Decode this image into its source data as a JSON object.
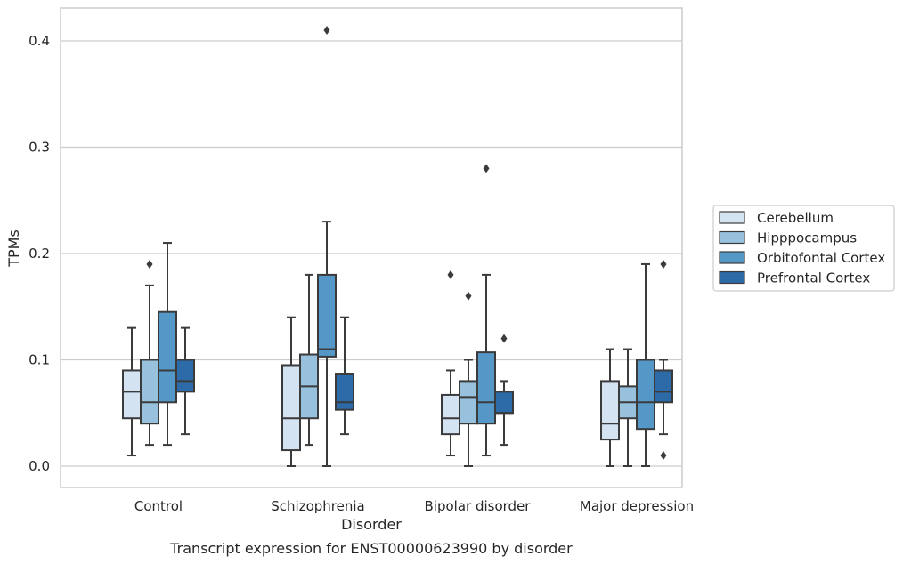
{
  "chart_data": {
    "type": "box",
    "xlabel": "Disorder",
    "ylabel": "TPMs",
    "caption": "Transcript expression for ENST00000623990 by disorder",
    "ylim": [
      -0.02,
      0.43
    ],
    "yticks": [
      0.0,
      0.1,
      0.2,
      0.3,
      0.4
    ],
    "ytick_labels": [
      "0.0",
      "0.1",
      "0.2",
      "0.3",
      "0.4"
    ],
    "grid": "horizontal",
    "legend_position": "right",
    "categories": [
      "Control",
      "Schizophrenia",
      "Bipolar disorder",
      "Major depression"
    ],
    "series": [
      {
        "name": "Cerebellum",
        "color": "#d4e3f2",
        "boxes": [
          {
            "whislo": 0.01,
            "q1": 0.045,
            "med": 0.07,
            "q3": 0.09,
            "whishi": 0.13,
            "fliers": []
          },
          {
            "whislo": 0.0,
            "q1": 0.015,
            "med": 0.045,
            "q3": 0.095,
            "whishi": 0.14,
            "fliers": []
          },
          {
            "whislo": 0.01,
            "q1": 0.03,
            "med": 0.045,
            "q3": 0.067,
            "whishi": 0.09,
            "fliers": [
              0.18
            ]
          },
          {
            "whislo": 0.0,
            "q1": 0.025,
            "med": 0.04,
            "q3": 0.08,
            "whishi": 0.11,
            "fliers": []
          }
        ]
      },
      {
        "name": "Hipppocampus",
        "color": "#98c1dd",
        "boxes": [
          {
            "whislo": 0.02,
            "q1": 0.04,
            "med": 0.06,
            "q3": 0.1,
            "whishi": 0.17,
            "fliers": [
              0.19
            ]
          },
          {
            "whislo": 0.02,
            "q1": 0.045,
            "med": 0.075,
            "q3": 0.105,
            "whishi": 0.18,
            "fliers": []
          },
          {
            "whislo": 0.0,
            "q1": 0.04,
            "med": 0.065,
            "q3": 0.08,
            "whishi": 0.1,
            "fliers": [
              0.16
            ]
          },
          {
            "whislo": 0.0,
            "q1": 0.045,
            "med": 0.06,
            "q3": 0.075,
            "whishi": 0.11,
            "fliers": []
          }
        ]
      },
      {
        "name": "Orbitofontal Cortex",
        "color": "#5598c8",
        "boxes": [
          {
            "whislo": 0.02,
            "q1": 0.06,
            "med": 0.09,
            "q3": 0.145,
            "whishi": 0.21,
            "fliers": []
          },
          {
            "whislo": 0.0,
            "q1": 0.103,
            "med": 0.11,
            "q3": 0.18,
            "whishi": 0.23,
            "fliers": [
              0.41
            ]
          },
          {
            "whislo": 0.01,
            "q1": 0.04,
            "med": 0.06,
            "q3": 0.107,
            "whishi": 0.18,
            "fliers": [
              0.28
            ]
          },
          {
            "whislo": 0.0,
            "q1": 0.035,
            "med": 0.06,
            "q3": 0.1,
            "whishi": 0.19,
            "fliers": []
          }
        ]
      },
      {
        "name": "Prefrontal Cortex",
        "color": "#2c6aa8",
        "boxes": [
          {
            "whislo": 0.03,
            "q1": 0.07,
            "med": 0.08,
            "q3": 0.1,
            "whishi": 0.13,
            "fliers": []
          },
          {
            "whislo": 0.03,
            "q1": 0.053,
            "med": 0.06,
            "q3": 0.087,
            "whishi": 0.14,
            "fliers": []
          },
          {
            "whislo": 0.02,
            "q1": 0.05,
            "med": 0.05,
            "q3": 0.07,
            "whishi": 0.08,
            "fliers": [
              0.12
            ]
          },
          {
            "whislo": 0.03,
            "q1": 0.06,
            "med": 0.07,
            "q3": 0.09,
            "whishi": 0.1,
            "fliers": [
              0.19,
              0.01
            ]
          }
        ]
      }
    ]
  }
}
